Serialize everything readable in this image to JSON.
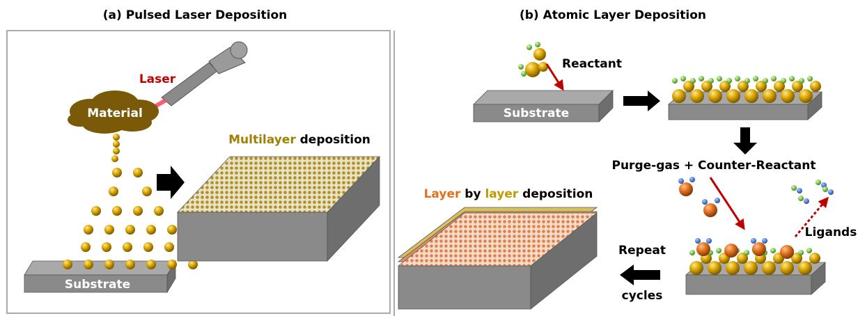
{
  "panels": [
    {
      "label": "(a)",
      "title": "Pulsed Laser Deposition",
      "laser": "Laser",
      "material": "Material",
      "result": [
        "Multilayer",
        "deposition"
      ],
      "substrate": "Substrate"
    },
    {
      "label": "(b)",
      "title": "Atomic Layer Deposition",
      "reactant": "Reactant",
      "substrate": "Substrate",
      "purge": "Purge-gas + Counter-Reactant",
      "ligands": "Ligands",
      "result": [
        "Layer",
        "by",
        "layer",
        "deposition"
      ],
      "repeat": [
        "Repeat",
        "cycles"
      ]
    }
  ]
}
